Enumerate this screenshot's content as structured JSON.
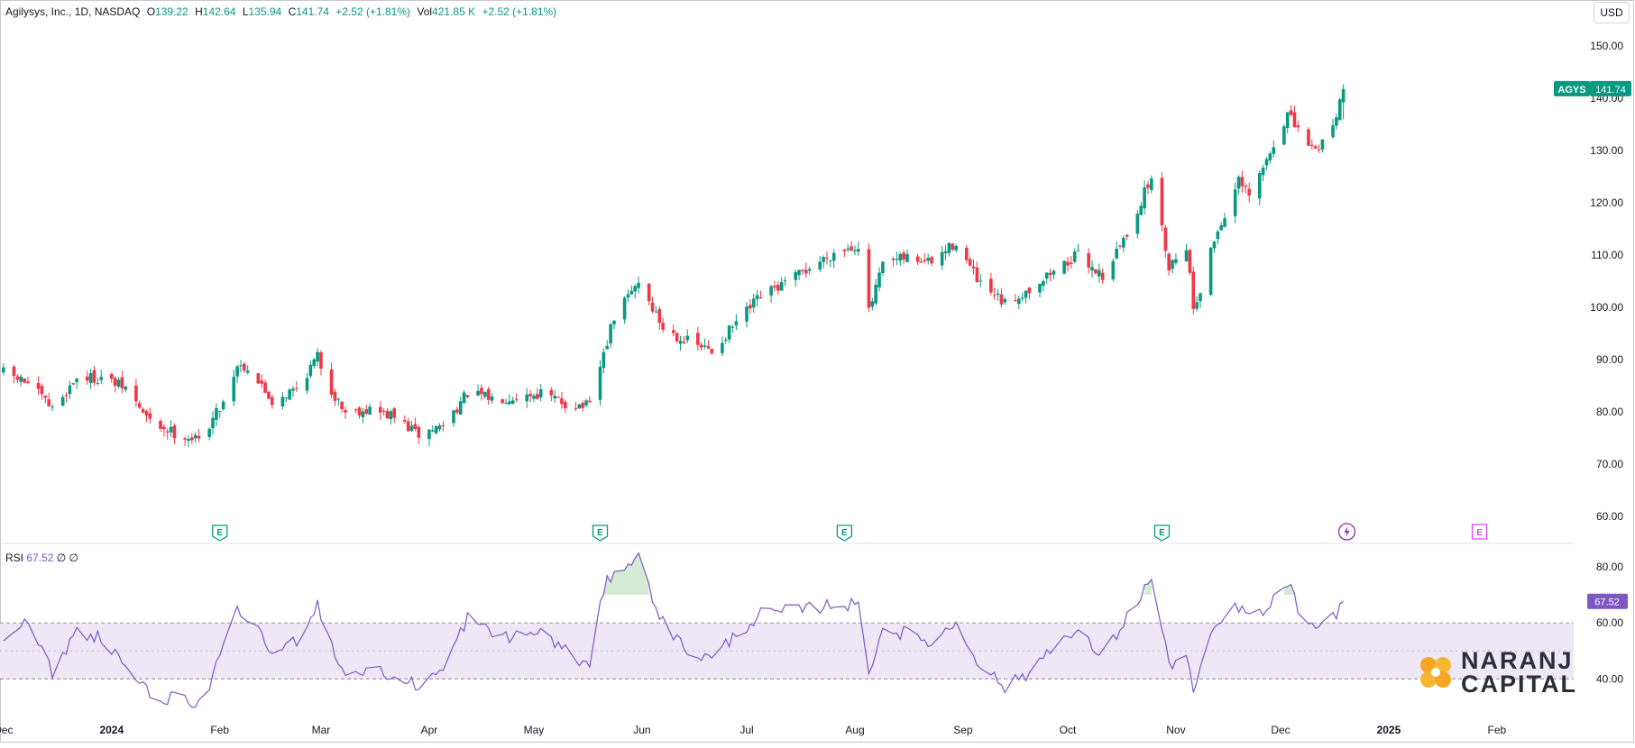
{
  "legend": {
    "name": "Agilysys, Inc., 1D, NASDAQ",
    "o_key": "O",
    "o_val": "139.22",
    "h_key": "H",
    "h_val": "142.64",
    "l_key": "L",
    "l_val": "135.94",
    "c_key": "C",
    "c_val": "141.74",
    "change": "+2.52 (+1.81%)",
    "vol_key": "Vol",
    "vol_val": "421.85 K",
    "vol_change": "+2.52 (+1.81%)"
  },
  "currency_button": "USD",
  "last_price_tag": {
    "ticker": "AGYS",
    "price": "141.74"
  },
  "rsi": {
    "label": "RSI",
    "value": "67.52",
    "extra": "∅ ∅"
  },
  "logo": {
    "line1": "NARANJ",
    "line2": "CAPITAL"
  },
  "colors": {
    "up": "#089981",
    "down": "#f23645",
    "rsi": "#7e57c2",
    "rsi_band": "#ede7f6",
    "earnings": "#089981",
    "dividend": "#9c27b0",
    "upcoming_earnings": "#e040fb"
  },
  "chart_data": {
    "type": "candlestick",
    "title": "Agilysys, Inc., 1D, NASDAQ",
    "price_axis": {
      "ticks": [
        "150.00",
        "140.00",
        "130.00",
        "120.00",
        "110.00",
        "100.00",
        "90.00",
        "80.00",
        "70.00",
        "60.00"
      ],
      "range": [
        56,
        155
      ]
    },
    "time_axis": {
      "ticks": [
        "Dec",
        "2024",
        "Feb",
        "Mar",
        "Apr",
        "May",
        "Jun",
        "Jul",
        "Aug",
        "Sep",
        "Oct",
        "Nov",
        "Dec",
        "2025",
        "Feb"
      ]
    },
    "price_path": [
      {
        "date": "2023-12-01",
        "close": 87.5
      },
      {
        "date": "2023-12-08",
        "close": 85.5
      },
      {
        "date": "2023-12-15",
        "close": 80.5
      },
      {
        "date": "2023-12-22",
        "close": 86.5
      },
      {
        "date": "2023-12-29",
        "close": 86.5
      },
      {
        "date": "2024-01-05",
        "close": 84.5
      },
      {
        "date": "2024-01-12",
        "close": 78
      },
      {
        "date": "2024-01-19",
        "close": 76
      },
      {
        "date": "2024-01-26",
        "close": 74.5
      },
      {
        "date": "2024-02-02",
        "close": 82
      },
      {
        "date": "2024-02-06",
        "close": 89
      },
      {
        "date": "2024-02-09",
        "close": 88.5
      },
      {
        "date": "2024-02-16",
        "close": 82
      },
      {
        "date": "2024-02-23",
        "close": 84.5
      },
      {
        "date": "2024-02-29",
        "close": 90.5
      },
      {
        "date": "2024-03-04",
        "close": 84
      },
      {
        "date": "2024-03-08",
        "close": 80
      },
      {
        "date": "2024-03-15",
        "close": 80.5
      },
      {
        "date": "2024-03-22",
        "close": 79
      },
      {
        "date": "2024-03-29",
        "close": 75.5
      },
      {
        "date": "2024-04-05",
        "close": 77.5
      },
      {
        "date": "2024-04-12",
        "close": 83.5
      },
      {
        "date": "2024-04-19",
        "close": 82.5
      },
      {
        "date": "2024-04-26",
        "close": 83
      },
      {
        "date": "2024-05-03",
        "close": 83.5
      },
      {
        "date": "2024-05-10",
        "close": 81.5
      },
      {
        "date": "2024-05-17",
        "close": 81
      },
      {
        "date": "2024-05-21",
        "close": 91
      },
      {
        "date": "2024-05-24",
        "close": 98
      },
      {
        "date": "2024-05-31",
        "close": 105
      },
      {
        "date": "2024-06-07",
        "close": 96
      },
      {
        "date": "2024-06-14",
        "close": 93.5
      },
      {
        "date": "2024-06-21",
        "close": 91.5
      },
      {
        "date": "2024-06-28",
        "close": 97
      },
      {
        "date": "2024-07-05",
        "close": 102
      },
      {
        "date": "2024-07-12",
        "close": 104.5
      },
      {
        "date": "2024-07-19",
        "close": 107.5
      },
      {
        "date": "2024-07-26",
        "close": 110.5
      },
      {
        "date": "2024-08-02",
        "close": 112
      },
      {
        "date": "2024-08-05",
        "close": 99
      },
      {
        "date": "2024-08-09",
        "close": 108
      },
      {
        "date": "2024-08-16",
        "close": 109.5
      },
      {
        "date": "2024-08-23",
        "close": 108.5
      },
      {
        "date": "2024-08-30",
        "close": 112.5
      },
      {
        "date": "2024-09-06",
        "close": 104
      },
      {
        "date": "2024-09-13",
        "close": 100.5
      },
      {
        "date": "2024-09-20",
        "close": 103.5
      },
      {
        "date": "2024-09-27",
        "close": 107
      },
      {
        "date": "2024-10-04",
        "close": 110
      },
      {
        "date": "2024-10-11",
        "close": 106
      },
      {
        "date": "2024-10-18",
        "close": 114
      },
      {
        "date": "2024-10-25",
        "close": 125
      },
      {
        "date": "2024-10-30",
        "close": 108
      },
      {
        "date": "2024-11-04",
        "close": 112
      },
      {
        "date": "2024-11-06",
        "close": 100
      },
      {
        "date": "2024-11-08",
        "close": 103.5
      },
      {
        "date": "2024-11-12",
        "close": 113
      },
      {
        "date": "2024-11-19",
        "close": 124
      },
      {
        "date": "2024-11-22",
        "close": 121
      },
      {
        "date": "2024-11-27",
        "close": 128
      },
      {
        "date": "2024-12-03",
        "close": 137
      },
      {
        "date": "2024-12-06",
        "close": 133.5
      },
      {
        "date": "2024-12-11",
        "close": 130
      },
      {
        "date": "2024-12-16",
        "close": 135
      },
      {
        "date": "2024-12-19",
        "close": 141.74
      }
    ],
    "last_price": 141.74,
    "earnings_markers": [
      "2024-02-01",
      "2024-05-20",
      "2024-07-29",
      "2024-10-28"
    ],
    "dividend_marker": "2024-12-20",
    "upcoming_earnings": "2025-01-27",
    "rsi": {
      "period_value": 67.52,
      "axis_ticks": [
        "80.00",
        "60.00",
        "40.00"
      ],
      "range": [
        25,
        88
      ],
      "band": [
        40,
        60
      ],
      "midline": 50,
      "series": [
        {
          "date": "2023-12-01",
          "value": 56
        },
        {
          "date": "2023-12-08",
          "value": 60
        },
        {
          "date": "2023-12-15",
          "value": 42
        },
        {
          "date": "2023-12-22",
          "value": 57
        },
        {
          "date": "2023-12-29",
          "value": 55
        },
        {
          "date": "2024-01-05",
          "value": 45
        },
        {
          "date": "2024-01-12",
          "value": 34
        },
        {
          "date": "2024-01-19",
          "value": 33
        },
        {
          "date": "2024-01-26",
          "value": 30
        },
        {
          "date": "2024-02-02",
          "value": 50
        },
        {
          "date": "2024-02-06",
          "value": 64
        },
        {
          "date": "2024-02-09",
          "value": 62
        },
        {
          "date": "2024-02-16",
          "value": 49
        },
        {
          "date": "2024-02-23",
          "value": 54
        },
        {
          "date": "2024-02-29",
          "value": 67
        },
        {
          "date": "2024-03-04",
          "value": 52
        },
        {
          "date": "2024-03-08",
          "value": 41
        },
        {
          "date": "2024-03-15",
          "value": 44
        },
        {
          "date": "2024-03-22",
          "value": 40
        },
        {
          "date": "2024-03-29",
          "value": 38
        },
        {
          "date": "2024-04-05",
          "value": 43
        },
        {
          "date": "2024-04-12",
          "value": 62
        },
        {
          "date": "2024-04-19",
          "value": 56
        },
        {
          "date": "2024-04-26",
          "value": 55
        },
        {
          "date": "2024-05-03",
          "value": 57
        },
        {
          "date": "2024-05-10",
          "value": 50
        },
        {
          "date": "2024-05-17",
          "value": 44
        },
        {
          "date": "2024-05-21",
          "value": 72
        },
        {
          "date": "2024-05-24",
          "value": 79
        },
        {
          "date": "2024-05-31",
          "value": 83
        },
        {
          "date": "2024-06-07",
          "value": 60
        },
        {
          "date": "2024-06-14",
          "value": 50
        },
        {
          "date": "2024-06-21",
          "value": 47
        },
        {
          "date": "2024-06-28",
          "value": 56
        },
        {
          "date": "2024-07-05",
          "value": 63
        },
        {
          "date": "2024-07-12",
          "value": 64
        },
        {
          "date": "2024-07-19",
          "value": 65
        },
        {
          "date": "2024-07-26",
          "value": 67
        },
        {
          "date": "2024-08-02",
          "value": 66
        },
        {
          "date": "2024-08-05",
          "value": 43
        },
        {
          "date": "2024-08-09",
          "value": 58
        },
        {
          "date": "2024-08-16",
          "value": 56
        },
        {
          "date": "2024-08-23",
          "value": 53
        },
        {
          "date": "2024-08-30",
          "value": 60
        },
        {
          "date": "2024-09-06",
          "value": 45
        },
        {
          "date": "2024-09-13",
          "value": 37
        },
        {
          "date": "2024-09-20",
          "value": 42
        },
        {
          "date": "2024-09-27",
          "value": 53
        },
        {
          "date": "2024-10-04",
          "value": 56
        },
        {
          "date": "2024-10-11",
          "value": 48
        },
        {
          "date": "2024-10-18",
          "value": 62
        },
        {
          "date": "2024-10-25",
          "value": 76
        },
        {
          "date": "2024-10-30",
          "value": 45
        },
        {
          "date": "2024-11-04",
          "value": 49
        },
        {
          "date": "2024-11-06",
          "value": 35
        },
        {
          "date": "2024-11-08",
          "value": 42
        },
        {
          "date": "2024-11-12",
          "value": 58
        },
        {
          "date": "2024-11-19",
          "value": 66
        },
        {
          "date": "2024-11-22",
          "value": 62
        },
        {
          "date": "2024-11-27",
          "value": 64
        },
        {
          "date": "2024-12-03",
          "value": 75
        },
        {
          "date": "2024-12-06",
          "value": 65
        },
        {
          "date": "2024-12-11",
          "value": 56
        },
        {
          "date": "2024-12-16",
          "value": 62
        },
        {
          "date": "2024-12-19",
          "value": 67.52
        }
      ]
    },
    "grid": false
  }
}
